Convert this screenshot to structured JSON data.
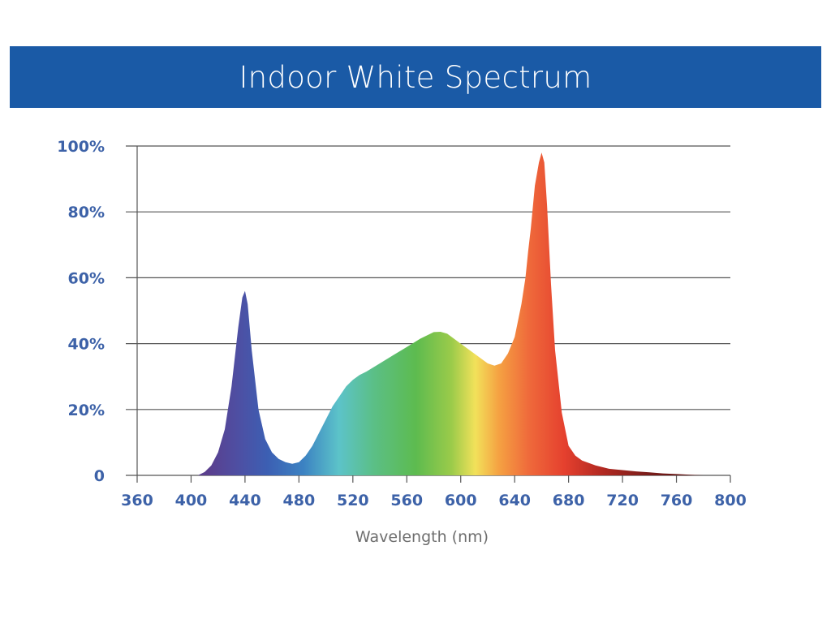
{
  "title": "Indoor White Spectrum",
  "colors": {
    "banner": "#1a5aa6",
    "tick_text": "#3d62a8",
    "grid": "#555555",
    "axis_label": "#6e6e6e"
  },
  "chart_data": {
    "type": "area",
    "title": "Indoor White Spectrum",
    "xlabel": "Wavelength (nm)",
    "ylabel": "",
    "xlim": [
      360,
      800
    ],
    "ylim": [
      0,
      100
    ],
    "x_ticks": [
      360,
      400,
      440,
      480,
      520,
      560,
      600,
      640,
      680,
      720,
      760,
      800
    ],
    "x_tick_labels": [
      "360",
      "400",
      "440",
      "480",
      "520",
      "560",
      "600",
      "640",
      "680",
      "720",
      "760",
      "800"
    ],
    "y_ticks": [
      0,
      20,
      40,
      60,
      80,
      100
    ],
    "y_tick_labels": [
      "0",
      "20%",
      "40%",
      "60%",
      "80%",
      "100%"
    ],
    "grid": "horizontal",
    "fill": "visible-spectrum gradient",
    "series": [
      {
        "x": [
          405,
          410,
          415,
          420,
          425,
          430,
          435,
          438,
          440,
          442,
          445,
          450,
          455,
          460,
          465,
          470,
          475,
          480,
          485,
          490,
          495,
          500,
          505,
          510,
          515,
          520,
          525,
          530,
          540,
          550,
          560,
          570,
          580,
          585,
          590,
          600,
          610,
          620,
          625,
          630,
          635,
          640,
          645,
          648,
          650,
          652,
          655,
          658,
          660,
          662,
          664,
          667,
          670,
          675,
          680,
          685,
          690,
          700,
          710,
          720,
          730,
          740,
          750,
          760,
          770,
          780
        ],
        "values": [
          0,
          1,
          3,
          7,
          14,
          27,
          45,
          54,
          56,
          52,
          38,
          20,
          11,
          7,
          5,
          4,
          3.5,
          4,
          6,
          9,
          13,
          17,
          21,
          24,
          27,
          29,
          30.5,
          31.5,
          34,
          36.5,
          39,
          41.5,
          43.5,
          43.6,
          43,
          40,
          37,
          34,
          33.3,
          34,
          37,
          42,
          52,
          60,
          68,
          75,
          88,
          95,
          98,
          95,
          82,
          58,
          38,
          19,
          9,
          6,
          4.5,
          3,
          2,
          1.6,
          1.2,
          0.9,
          0.6,
          0.4,
          0.2,
          0
        ]
      }
    ]
  }
}
